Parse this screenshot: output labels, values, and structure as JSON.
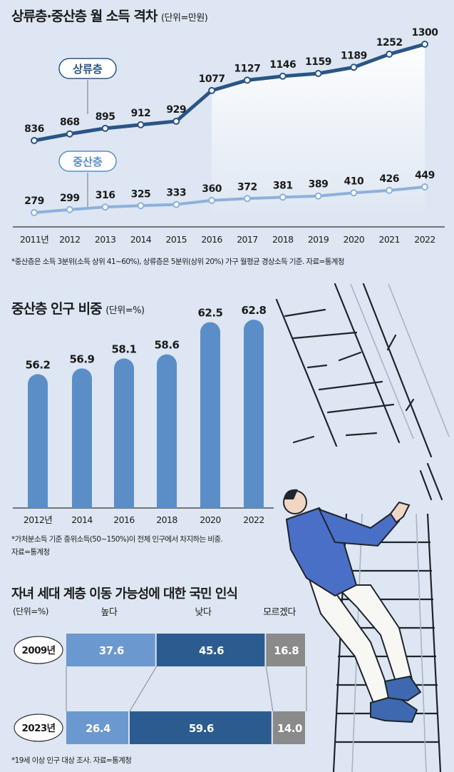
{
  "chart1": {
    "title": "상류층·중산층 월 소득 격차",
    "unit": "(단위=만원)",
    "footnote": "*중산층은 소득 3분위(소득 상위 41~60%), 상류층은 5분위(상위 20%) 가구 월평균 경상소득 기준. 자료=통계청"
  },
  "chart2": {
    "title": "중산층 인구 비중",
    "unit": "(단위=%)",
    "footnote_line1": "*가처분소득 기준 중위소득(50~150%)이 전체 인구에서 차지하는 비중.",
    "footnote_line2": "자료=통계청"
  },
  "chart3": {
    "title": "자녀 세대 계층 이동 가능성에 대한 국민 인식",
    "unit": "(단위=%)",
    "footnote": "*19세 이상 인구 대상 조사. 자료=통계청"
  },
  "chart_data": [
    {
      "type": "line",
      "title": "상류층·중산층 월 소득 격차",
      "unit": "만원",
      "x": [
        "2011년",
        "2012",
        "2013",
        "2014",
        "2015",
        "2016",
        "2017",
        "2018",
        "2019",
        "2020",
        "2021",
        "2022"
      ],
      "series": [
        {
          "name": "상류층",
          "values": [
            836,
            868,
            895,
            912,
            929,
            1077,
            1127,
            1146,
            1159,
            1189,
            1252,
            1300
          ],
          "color": "#2a5585"
        },
        {
          "name": "중산층",
          "values": [
            279,
            299,
            316,
            325,
            333,
            360,
            372,
            381,
            389,
            410,
            426,
            449
          ],
          "color": "#8db1db"
        }
      ]
    },
    {
      "type": "bar",
      "title": "중산층 인구 비중",
      "unit": "%",
      "categories": [
        "2012년",
        "2014",
        "2016",
        "2018",
        "2020",
        "2022"
      ],
      "values": [
        56.2,
        56.9,
        58.1,
        58.6,
        62.5,
        62.8
      ],
      "color": "#5b8ec7"
    },
    {
      "type": "bar",
      "stacked": true,
      "orientation": "horizontal",
      "title": "자녀 세대 계층 이동 가능성에 대한 국민 인식",
      "unit": "%",
      "categories": [
        "2009년",
        "2023년"
      ],
      "series": [
        {
          "name": "높다",
          "values": [
            37.6,
            26.4
          ],
          "color": "#6b98cf"
        },
        {
          "name": "낮다",
          "values": [
            45.6,
            59.6
          ],
          "color": "#2c5c8f"
        },
        {
          "name": "모르겠다",
          "values": [
            16.8,
            14.0
          ],
          "color": "#8a8a8a"
        }
      ]
    }
  ]
}
